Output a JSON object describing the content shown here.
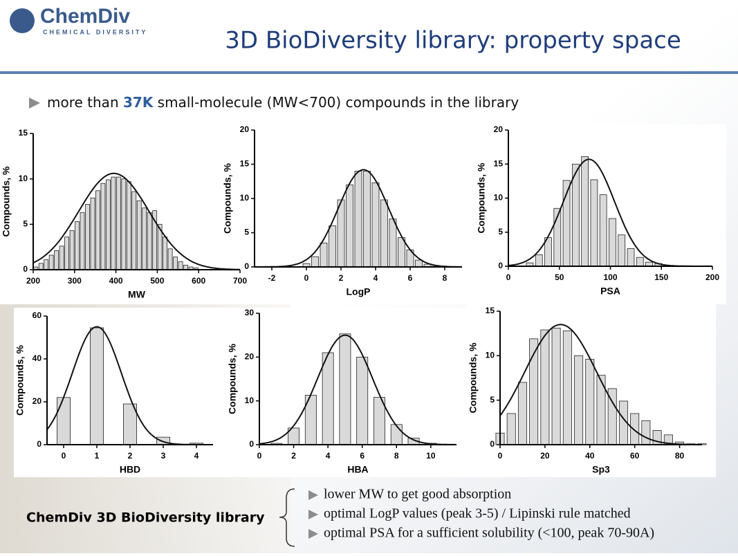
{
  "logo": {
    "name": "ChemDiv",
    "tagline": "CHEMICAL DIVERSITY"
  },
  "title": "3D BioDiversity library: property space",
  "intro": {
    "before": "more than ",
    "highlight": "37K",
    "after": " small-molecule (MW<700) compounds in the library"
  },
  "library_label": "ChemDiv 3D BioDiversity library",
  "notes": [
    "lower MW to get good absorption",
    "optimal LogP values (peak 3-5) / Lipinski rule matched",
    "optimal PSA for a sufficient solubility (<100, peak 70-90A)"
  ],
  "chart_data": [
    {
      "type": "histogram",
      "x_label": "MW",
      "y_label": "Compounds, %",
      "color": "#d9d9d9",
      "x": [
        206.25,
        218.75,
        231.25,
        243.75,
        256.25,
        268.75,
        281.25,
        293.75,
        306.25,
        318.75,
        331.25,
        343.75,
        356.25,
        368.75,
        381.25,
        393.75,
        406.25,
        418.75,
        431.25,
        443.75,
        456.25,
        468.75,
        481.25,
        493.75,
        506.25,
        518.75,
        531.25,
        543.75,
        556.25,
        568.75,
        581.25,
        593.75
      ],
      "values": [
        0.3,
        0.7,
        1.1,
        1.6,
        2.1,
        2.6,
        3.6,
        4.3,
        5.3,
        6.3,
        7.2,
        7.9,
        8.7,
        9.5,
        9.9,
        10.2,
        10.2,
        10,
        9.7,
        8.6,
        7.6,
        6.8,
        6.3,
        6.5,
        5.0,
        3.6,
        2.3,
        1.4,
        0.9,
        0.5,
        0.3,
        0.2
      ],
      "fit": {
        "mean": 395,
        "sd": 85,
        "peak": 10.6
      },
      "xlim": [
        200,
        700
      ],
      "xticks": [
        200,
        300,
        400,
        500,
        600,
        700
      ],
      "ylim": [
        0,
        15
      ],
      "yticks": [
        0,
        5,
        10,
        15
      ]
    },
    {
      "type": "histogram",
      "x_label": "LogP",
      "y_label": "Compounds, %",
      "color": "#d9d9d9",
      "x": [
        0,
        0.5,
        1,
        1.5,
        2,
        2.5,
        3,
        3.5,
        4,
        4.5,
        5,
        5.5,
        6,
        6.5,
        7,
        7.5
      ],
      "values": [
        0.5,
        1.5,
        3.5,
        6,
        9.8,
        12,
        14,
        14,
        12.3,
        9.8,
        7,
        4.3,
        2.5,
        1,
        0.4,
        0.1
      ],
      "fit": {
        "mean": 3.3,
        "sd": 1.45,
        "peak": 14.2
      },
      "xlim": [
        -3,
        9
      ],
      "xticks": [
        -2,
        0,
        2,
        4,
        6,
        8
      ],
      "ylim": [
        0,
        20
      ],
      "yticks": [
        0,
        5,
        10,
        15,
        20
      ]
    },
    {
      "type": "histogram",
      "x_label": "PSA",
      "y_label": "Compounds, %",
      "color": "#d9d9d9",
      "x": [
        21,
        30,
        39,
        48,
        57,
        66,
        75,
        84,
        93,
        102,
        111,
        120,
        129,
        138,
        147,
        156
      ],
      "values": [
        0.5,
        1.7,
        4.2,
        8.5,
        12.6,
        15,
        16.1,
        12.7,
        10.5,
        7,
        4.6,
        2.6,
        1.3,
        0.6,
        0.4,
        0.1
      ],
      "fit": {
        "mean": 79,
        "sd": 25,
        "peak": 15.7
      },
      "xlim": [
        0,
        200
      ],
      "xticks": [
        0,
        50,
        100,
        150,
        200
      ],
      "ylim": [
        0,
        20
      ],
      "yticks": [
        0,
        5,
        10,
        15,
        20
      ]
    },
    {
      "type": "histogram",
      "x_label": "HBD",
      "y_label": "Compounds, %",
      "color": "#d9d9d9",
      "x": [
        0,
        1,
        2,
        3,
        4
      ],
      "values": [
        22,
        54.5,
        19,
        3.5,
        0.7
      ],
      "fit": {
        "mean": 1,
        "sd": 0.74,
        "peak": 55
      },
      "xlim": [
        -0.5,
        4.5
      ],
      "xticks": [
        0,
        1,
        2,
        3,
        4
      ],
      "ylim": [
        0,
        60
      ],
      "yticks": [
        0,
        20,
        40,
        60
      ]
    },
    {
      "type": "histogram",
      "x_label": "HBA",
      "y_label": "Compounds, %",
      "color": "#d9d9d9",
      "x": [
        1,
        2,
        3,
        4,
        5,
        6,
        7,
        8,
        9,
        10
      ],
      "values": [
        0.3,
        3.8,
        11.3,
        21,
        25.3,
        20,
        10.8,
        4.6,
        1.5,
        0.3
      ],
      "fit": {
        "mean": 5,
        "sd": 1.6,
        "peak": 25
      },
      "xlim": [
        0,
        11.5
      ],
      "xticks": [
        0,
        2,
        4,
        6,
        8,
        10
      ],
      "ylim": [
        0,
        30
      ],
      "yticks": [
        0,
        10,
        20,
        30
      ]
    },
    {
      "type": "histogram",
      "x_label": "Sp3",
      "y_label": "Compounds, %",
      "color": "#d9d9d9",
      "x": [
        0,
        5,
        10,
        15,
        20,
        25,
        30,
        35,
        40,
        45,
        50,
        55,
        60,
        65,
        70,
        75,
        80,
        85,
        90
      ],
      "values": [
        1.3,
        3.5,
        7,
        11.9,
        12.9,
        13.1,
        12.8,
        10,
        9.6,
        7.8,
        6.3,
        4.9,
        3.5,
        2.7,
        1.6,
        1.1,
        0.3,
        0.1,
        0.1
      ],
      "fit": {
        "mean": 27,
        "sd": 16,
        "peak": 13.5
      },
      "xlim": [
        0,
        90
      ],
      "xticks": [
        0,
        20,
        40,
        60,
        80
      ],
      "ylim": [
        0,
        15
      ],
      "yticks": [
        0,
        5,
        10,
        15
      ]
    }
  ]
}
